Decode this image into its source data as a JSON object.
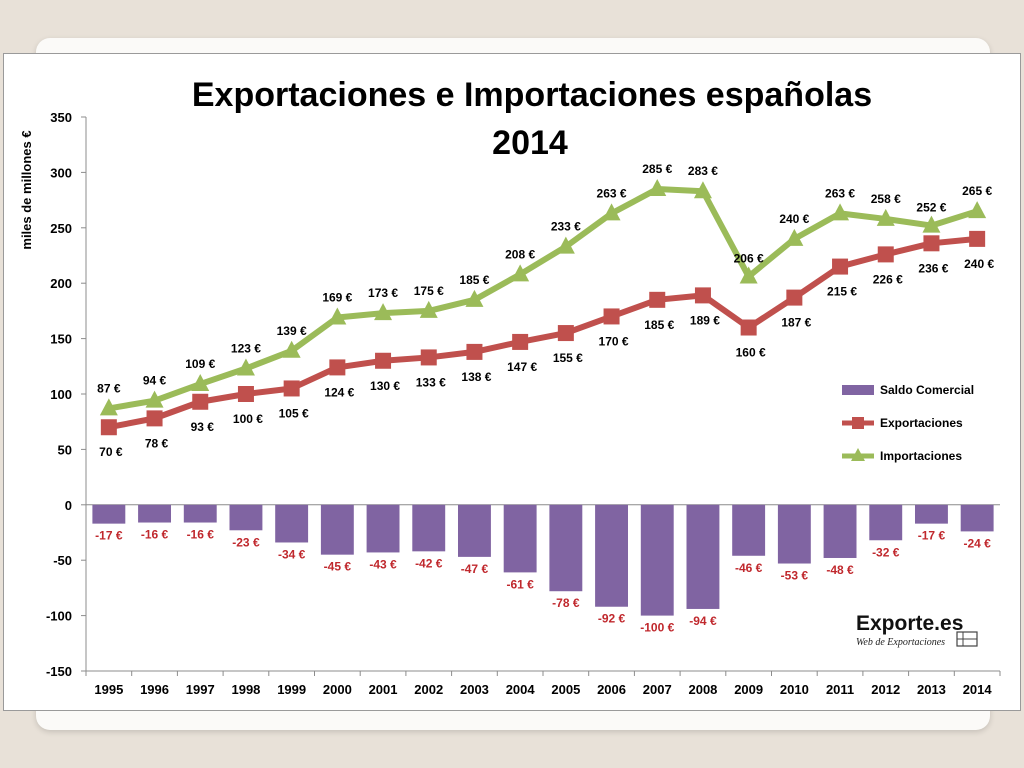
{
  "chart_data": {
    "type": "bar",
    "title": "Exportaciones e Importaciones españolas",
    "subtitle": "2014",
    "ylabel": "miles de millones €",
    "xlabel": "",
    "ylim": [
      -150,
      350
    ],
    "yticks": [
      350,
      300,
      250,
      200,
      150,
      100,
      50,
      0,
      -50,
      -100,
      -150
    ],
    "grid": false,
    "legend_position": "right",
    "categories": [
      "1995",
      "1996",
      "1997",
      "1998",
      "1999",
      "2000",
      "2001",
      "2002",
      "2003",
      "2004",
      "2005",
      "2006",
      "2007",
      "2008",
      "2009",
      "2010",
      "2011",
      "2012",
      "2013",
      "2014"
    ],
    "series": [
      {
        "name": "Saldo Comercial",
        "kind": "bar",
        "color": "#8064a2",
        "label_color": "#c0282d",
        "values": [
          -17,
          -16,
          -16,
          -23,
          -34,
          -45,
          -43,
          -42,
          -47,
          -61,
          -78,
          -92,
          -100,
          -94,
          -46,
          -53,
          -48,
          -32,
          -17,
          -24
        ],
        "labels": [
          "-17 €",
          "-16 €",
          "-16 €",
          "-23 €",
          "-34 €",
          "-45 €",
          "-43 €",
          "-42 €",
          "-47 €",
          "-61 €",
          "-78 €",
          "-92 €",
          "-100 €",
          "-94 €",
          "-46 €",
          "-53 €",
          "-48 €",
          "-32 €",
          "-17 €",
          "-24 €"
        ]
      },
      {
        "name": "Exportaciones",
        "kind": "line",
        "marker": "square",
        "color": "#c0504d",
        "label_color": "#000000",
        "values": [
          70,
          78,
          93,
          100,
          105,
          124,
          130,
          133,
          138,
          147,
          155,
          170,
          185,
          189,
          160,
          187,
          215,
          226,
          236,
          240
        ],
        "labels": [
          "70 €",
          "78 €",
          "93 €",
          "100 €",
          "105 €",
          "124 €",
          "130 €",
          "133 €",
          "138 €",
          "147 €",
          "155 €",
          "170 €",
          "185 €",
          "189 €",
          "160 €",
          "187 €",
          "215 €",
          "226 €",
          "236 €",
          "240 €"
        ]
      },
      {
        "name": "Importaciones",
        "kind": "line",
        "marker": "triangle",
        "color": "#9bbb59",
        "label_color": "#000000",
        "values": [
          87,
          94,
          109,
          123,
          139,
          169,
          173,
          175,
          185,
          208,
          233,
          263,
          285,
          283,
          206,
          240,
          263,
          258,
          252,
          265
        ],
        "labels": [
          "87 €",
          "94 €",
          "109 €",
          "123 €",
          "139 €",
          "169 €",
          "173 €",
          "175 €",
          "185 €",
          "208 €",
          "233 €",
          "263 €",
          "285 €",
          "283 €",
          "206 €",
          "240 €",
          "263 €",
          "258 €",
          "252 €",
          "265 €"
        ]
      }
    ]
  },
  "logo": {
    "text": "Exporte.es",
    "tagline": "Web de Exportaciones"
  }
}
